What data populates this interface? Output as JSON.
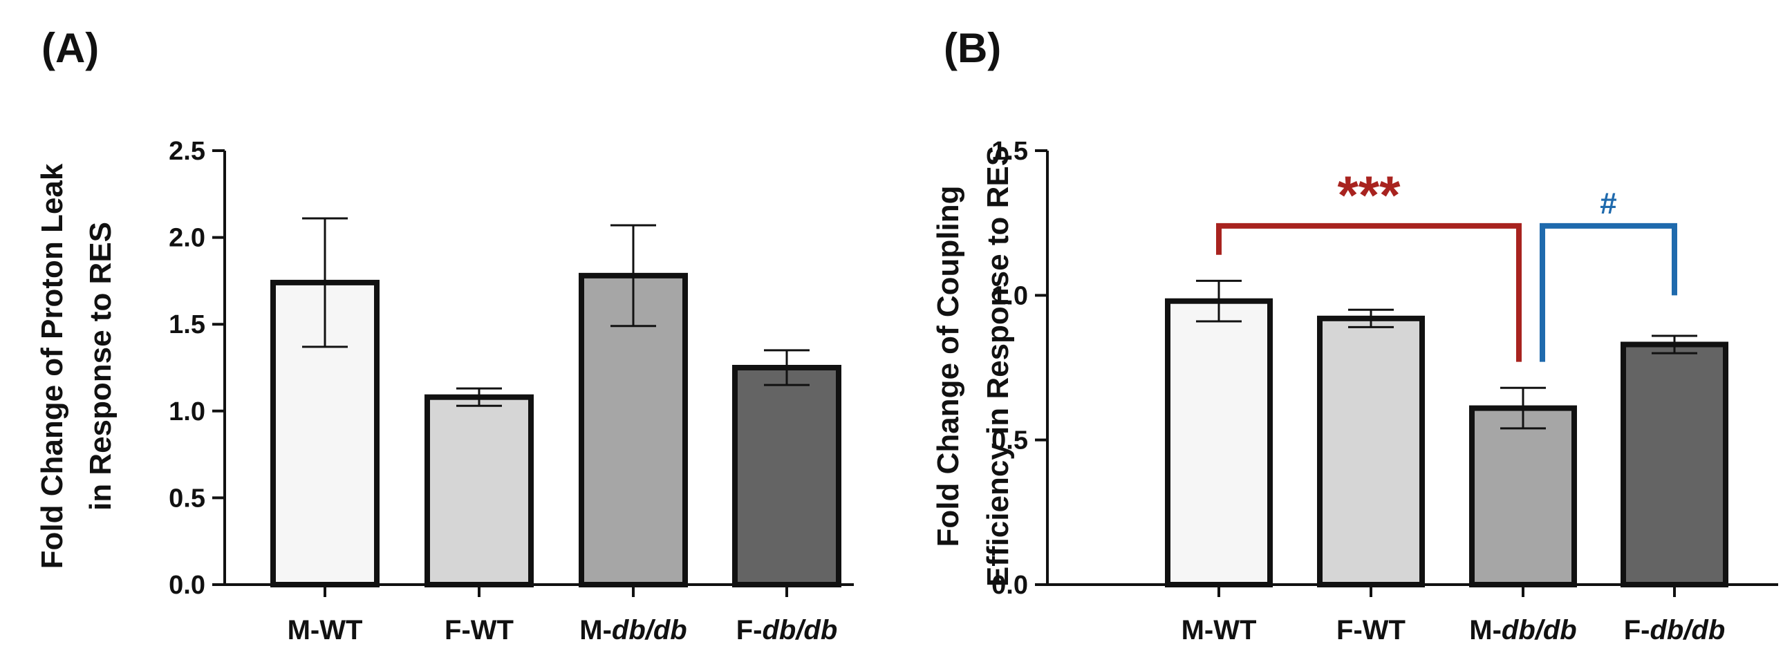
{
  "chart_data": [
    {
      "type": "bar",
      "panel_label": "(A)",
      "categories": [
        {
          "prefix": "M-",
          "suffix": "WT"
        },
        {
          "prefix": "F-",
          "suffix": "WT"
        },
        {
          "prefix": "M-",
          "suffix": "db/db",
          "italic": true
        },
        {
          "prefix": "F-",
          "suffix": "db/db",
          "italic": true
        }
      ],
      "values": [
        1.74,
        1.08,
        1.78,
        1.25
      ],
      "errors": [
        0.37,
        0.05,
        0.29,
        0.1
      ],
      "bar_colors": [
        "#f6f6f6",
        "#d6d6d6",
        "#a6a6a6",
        "#646464"
      ],
      "ylabel": [
        "Fold Change of Proton Leak",
        "in Response to RES"
      ],
      "xlabel": "",
      "ylim": [
        0,
        2.5
      ],
      "yticks": [
        "0.0",
        "0.5",
        "1.0",
        "1.5",
        "2.0",
        "2.5"
      ],
      "significance": []
    },
    {
      "type": "bar",
      "panel_label": "(B)",
      "categories": [
        {
          "prefix": "M-",
          "suffix": "WT"
        },
        {
          "prefix": "F-",
          "suffix": "WT"
        },
        {
          "prefix": "M-",
          "suffix": "db/db",
          "italic": true
        },
        {
          "prefix": "F-",
          "suffix": "db/db",
          "italic": true
        }
      ],
      "values": [
        0.98,
        0.92,
        0.61,
        0.83
      ],
      "errors": [
        0.07,
        0.03,
        0.07,
        0.03
      ],
      "bar_colors": [
        "#f6f6f6",
        "#d6d6d6",
        "#a6a6a6",
        "#646464"
      ],
      "ylabel": [
        "Fold Change of Coupling",
        "Efficiency in Response to RES"
      ],
      "xlabel": "",
      "ylim": [
        0,
        1.5
      ],
      "yticks": [
        "0.0",
        "0.5",
        "1.0",
        "1.5"
      ],
      "significance": [
        {
          "from": 0,
          "to": 2,
          "label": "***",
          "color": "#a8231f",
          "top": 1.24,
          "left_end": 1.14,
          "right_end": 0.77
        },
        {
          "from": 2,
          "to": 3,
          "label": "#",
          "color": "#1f6aad",
          "top": 1.24,
          "left_end": 0.77,
          "right_end": 1.0
        }
      ]
    }
  ]
}
